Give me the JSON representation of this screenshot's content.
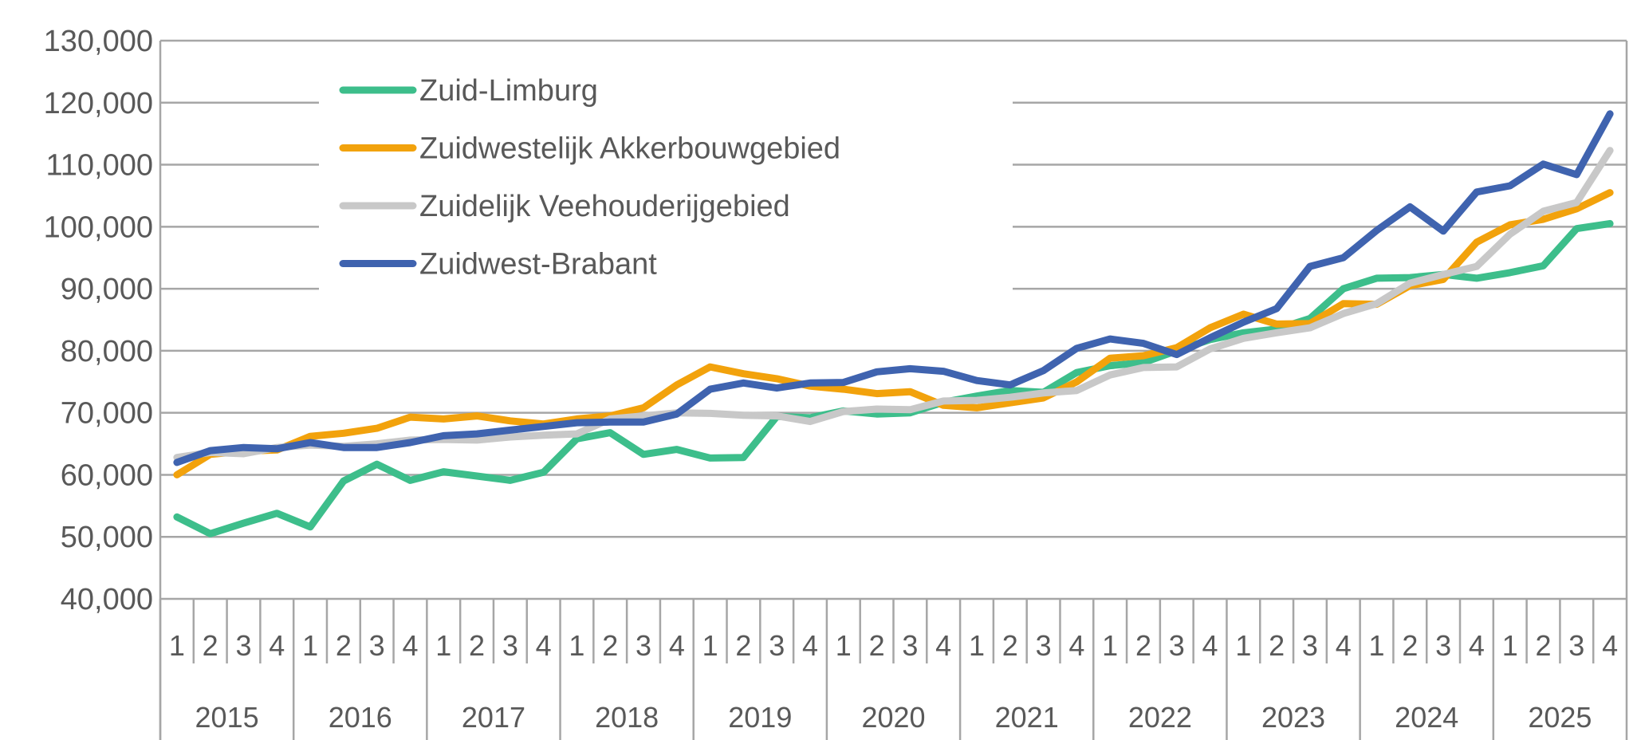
{
  "chart_data": {
    "type": "line",
    "title": "",
    "xlabel": "",
    "ylabel": "",
    "ylim": [
      40000,
      130000
    ],
    "yticks": [
      40000,
      50000,
      60000,
      70000,
      80000,
      90000,
      100000,
      110000,
      120000,
      130000
    ],
    "ytick_labels": [
      "40,000",
      "50,000",
      "60,000",
      "70,000",
      "80,000",
      "90,000",
      "100,000",
      "110,000",
      "120,000",
      "130,000"
    ],
    "grid": true,
    "legend_position": "top-left",
    "years": [
      "2015",
      "2016",
      "2017",
      "2018",
      "2019",
      "2020",
      "2021",
      "2022",
      "2023",
      "2024",
      "2025"
    ],
    "quarters": [
      "1",
      "2",
      "3",
      "4"
    ],
    "series": [
      {
        "name": "Zuid-Limburg",
        "color": "#3DBE8B",
        "values": [
          53200,
          50500,
          52200,
          53800,
          51600,
          59000,
          61700,
          59100,
          60500,
          59800,
          59100,
          60400,
          65800,
          66800,
          63300,
          64100,
          62700,
          62800,
          69400,
          69200,
          70300,
          69800,
          70000,
          71700,
          72700,
          73600,
          73300,
          76500,
          77600,
          78100,
          80000,
          81800,
          82900,
          83500,
          85200,
          90000,
          91700,
          91800,
          92300,
          91700,
          92600,
          93700,
          99700,
          100500
        ]
      },
      {
        "name": "Zuidwestelijk Akkerbouwgebied",
        "color": "#F2A20C",
        "values": [
          60000,
          63300,
          63800,
          64000,
          66200,
          66700,
          67500,
          69300,
          69000,
          69500,
          68700,
          68200,
          69000,
          69500,
          70800,
          74500,
          77400,
          76300,
          75500,
          74300,
          73800,
          73100,
          73400,
          71200,
          70800,
          71600,
          72400,
          75000,
          78800,
          79200,
          80500,
          83700,
          85900,
          84300,
          84400,
          87600,
          87500,
          90500,
          91500,
          97500,
          100300,
          101200,
          102900,
          105500
        ]
      },
      {
        "name": "Zuidelijk Veehouderijgebied",
        "color": "#C8C8C8",
        "values": [
          62800,
          63600,
          63400,
          64400,
          64800,
          64600,
          65000,
          65600,
          65700,
          65600,
          66100,
          66400,
          66600,
          69000,
          69500,
          70000,
          69900,
          69600,
          69500,
          68600,
          70200,
          70600,
          70500,
          71900,
          72000,
          72500,
          73200,
          73600,
          76100,
          77300,
          77400,
          80300,
          82000,
          82900,
          83700,
          86000,
          87600,
          90900,
          92300,
          93600,
          98800,
          102500,
          103900,
          112300
        ]
      },
      {
        "name": "Zuidwest-Brabant",
        "color": "#3F63AF",
        "values": [
          62000,
          63900,
          64400,
          64200,
          65200,
          64400,
          64400,
          65200,
          66300,
          66600,
          67200,
          67800,
          68400,
          68500,
          68500,
          69800,
          73800,
          74800,
          74000,
          74800,
          74900,
          76600,
          77100,
          76700,
          75200,
          74500,
          76800,
          80400,
          81900,
          81200,
          79400,
          82100,
          84600,
          86800,
          93600,
          95000,
          99400,
          103200,
          99300,
          105600,
          106600,
          110100,
          108400,
          118200
        ]
      }
    ]
  }
}
